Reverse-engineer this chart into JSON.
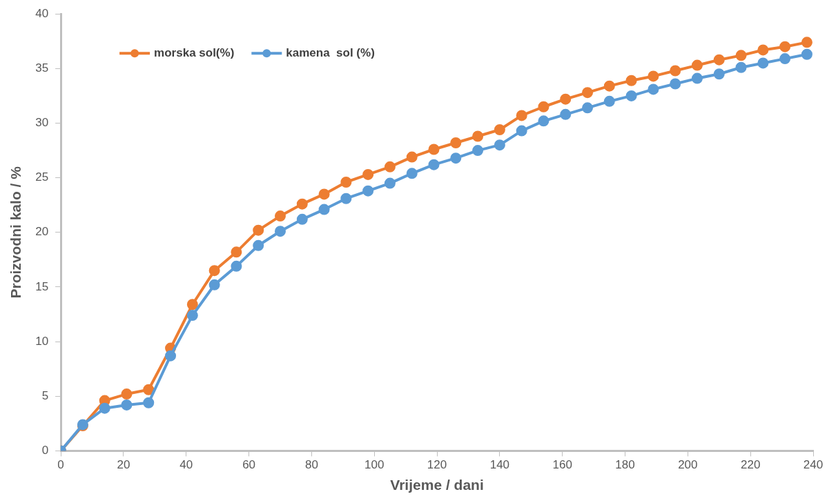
{
  "chart_data": {
    "type": "line",
    "xlabel": "Vrijeme / dani",
    "ylabel": "Proizvodni kalo / %",
    "x": [
      0,
      7,
      14,
      21,
      28,
      35,
      42,
      49,
      56,
      63,
      70,
      77,
      84,
      91,
      98,
      105,
      112,
      119,
      126,
      133,
      140,
      147,
      154,
      161,
      168,
      175,
      182,
      189,
      196,
      203,
      210,
      217,
      224,
      231,
      238
    ],
    "series": [
      {
        "name": "morska sol(%)",
        "color": "#ed7d31",
        "values": [
          0,
          2.3,
          4.6,
          5.2,
          5.6,
          9.4,
          13.4,
          16.5,
          18.2,
          20.2,
          21.5,
          22.6,
          23.5,
          24.6,
          25.3,
          26.0,
          26.9,
          27.6,
          28.2,
          28.8,
          29.4,
          30.7,
          31.5,
          32.2,
          32.8,
          33.4,
          33.9,
          34.3,
          34.8,
          35.3,
          35.8,
          36.2,
          36.7,
          37.0,
          37.4
        ]
      },
      {
        "name": "kamena  sol (%)",
        "color": "#5b9bd5",
        "values": [
          0,
          2.4,
          3.9,
          4.2,
          4.4,
          8.7,
          12.4,
          15.2,
          16.9,
          18.8,
          20.1,
          21.2,
          22.1,
          23.1,
          23.8,
          24.5,
          25.4,
          26.2,
          26.8,
          27.5,
          28.0,
          29.3,
          30.2,
          30.8,
          31.4,
          32.0,
          32.5,
          33.1,
          33.6,
          34.1,
          34.5,
          35.1,
          35.5,
          35.9,
          36.3
        ]
      }
    ],
    "xlim": [
      0,
      240
    ],
    "xticks": [
      0,
      20,
      40,
      60,
      80,
      100,
      120,
      140,
      160,
      180,
      200,
      220,
      240
    ],
    "ylim": [
      0,
      40
    ],
    "yticks": [
      0,
      5,
      10,
      15,
      20,
      25,
      30,
      35,
      40
    ],
    "grid": false,
    "legend": "top left",
    "marker": "circle",
    "line_style": "solid"
  }
}
